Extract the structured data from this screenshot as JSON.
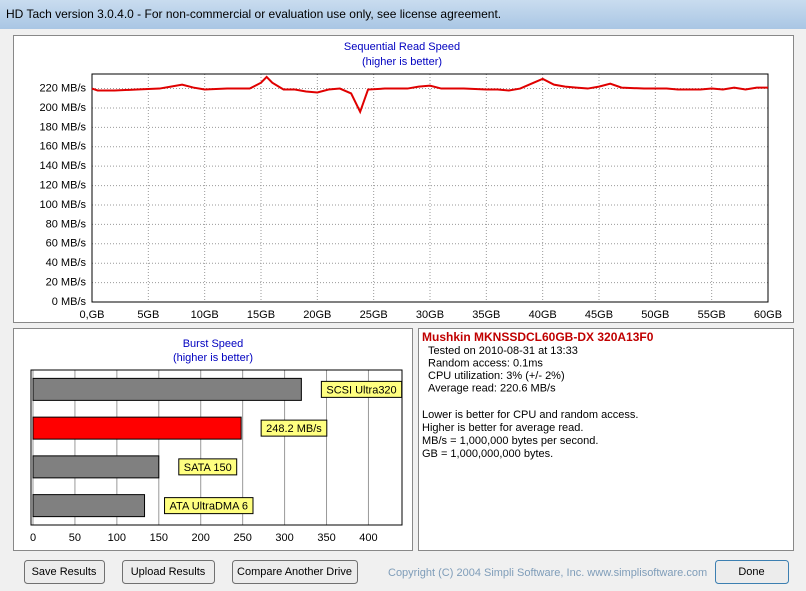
{
  "window": {
    "title": "HD Tach version 3.0.4.0  - For non-commercial or evaluation use only, see license agreement."
  },
  "chart_data": [
    {
      "type": "line",
      "title": "Sequential Read Speed",
      "subtitle": "(higher is better)",
      "x": [
        0,
        0.5,
        2,
        4,
        6,
        7,
        8,
        9,
        10,
        12,
        14,
        15,
        15.5,
        16,
        17,
        18,
        19,
        20,
        21,
        22,
        23,
        23.8,
        24.5,
        26,
        28,
        29,
        30,
        31,
        33,
        35,
        36,
        37,
        38,
        39,
        40,
        41,
        42,
        43,
        44,
        45,
        46,
        47,
        49,
        51,
        52,
        54,
        55,
        56,
        57,
        58,
        59,
        60
      ],
      "values": [
        220,
        218,
        218,
        219,
        220,
        222,
        224,
        221,
        219,
        220,
        220,
        226,
        232,
        226,
        219,
        219,
        217,
        216,
        219,
        220,
        215,
        196,
        219,
        220,
        220,
        222,
        223,
        220,
        220,
        219,
        219,
        218,
        220,
        225,
        230,
        224,
        222,
        221,
        220,
        222,
        225,
        221,
        220,
        220,
        219,
        219,
        220,
        219,
        221,
        219,
        221,
        221
      ],
      "color": "#e00000",
      "xlim": [
        0,
        60
      ],
      "ylim": [
        0,
        235
      ],
      "xticks": [
        {
          "value": 0,
          "label": "0,GB"
        },
        {
          "value": 5,
          "label": "5GB"
        },
        {
          "value": 10,
          "label": "10GB"
        },
        {
          "value": 15,
          "label": "15GB"
        },
        {
          "value": 20,
          "label": "20GB"
        },
        {
          "value": 25,
          "label": "25GB"
        },
        {
          "value": 30,
          "label": "30GB"
        },
        {
          "value": 35,
          "label": "35GB"
        },
        {
          "value": 40,
          "label": "40GB"
        },
        {
          "value": 45,
          "label": "45GB"
        },
        {
          "value": 50,
          "label": "50GB"
        },
        {
          "value": 55,
          "label": "55GB"
        },
        {
          "value": 60,
          "label": "60GB"
        }
      ],
      "yticks": [
        {
          "value": 0,
          "label": "0 MB/s"
        },
        {
          "value": 20,
          "label": "20 MB/s"
        },
        {
          "value": 40,
          "label": "40 MB/s"
        },
        {
          "value": 60,
          "label": "60 MB/s"
        },
        {
          "value": 80,
          "label": "80 MB/s"
        },
        {
          "value": 100,
          "label": "100 MB/s"
        },
        {
          "value": 120,
          "label": "120 MB/s"
        },
        {
          "value": 140,
          "label": "140 MB/s"
        },
        {
          "value": 160,
          "label": "160 MB/s"
        },
        {
          "value": 180,
          "label": "180 MB/s"
        },
        {
          "value": 200,
          "label": "200 MB/s"
        },
        {
          "value": 220,
          "label": "220 MB/s"
        }
      ],
      "grid": true
    },
    {
      "type": "hbar",
      "title": "Burst Speed",
      "subtitle": "(higher is better)",
      "categories": [
        "SCSI Ultra320",
        null,
        "SATA 150",
        "ATA UltraDMA 6"
      ],
      "values": [
        320,
        248.2,
        150,
        133
      ],
      "value_labels": [
        null,
        "248.2 MB/s",
        null,
        null
      ],
      "colors": [
        "#808080",
        "#ff0000",
        "#808080",
        "#808080"
      ],
      "xlim": [
        0,
        440
      ],
      "xticks": [
        0,
        50,
        100,
        150,
        200,
        250,
        300,
        350,
        400
      ],
      "grid": true
    }
  ],
  "info": {
    "heading": "Mushkin MKNSSDCL60GB-DX 320A13F0",
    "details": [
      "Tested on 2010-08-31 at 13:33",
      "Random access: 0.1ms",
      "CPU utilization: 3% (+/- 2%)",
      "Average read: 220.6 MB/s"
    ],
    "notes": [
      "Lower is better for CPU and random access.",
      "Higher is better for average read.",
      "MB/s = 1,000,000 bytes per second.",
      "GB = 1,000,000,000 bytes."
    ]
  },
  "buttons": [
    "Save Results",
    "Upload Results",
    "Compare Another Drive",
    "Done"
  ],
  "copyright": "Copyright (C) 2004 Simpli Software, Inc. www.simplisoftware.com"
}
